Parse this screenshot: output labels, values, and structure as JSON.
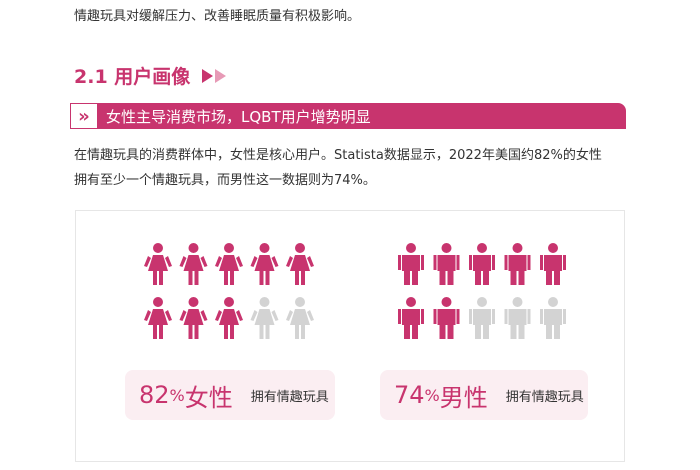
{
  "intro": "情趣玩具对缓解压力、改善睡眠质量有积极影响。",
  "section": {
    "title": "2.1 用户画像"
  },
  "banner": {
    "text": "女性主导消费市场，LQBT用户增势明显"
  },
  "paragraph": {
    "lines": [
      "在情趣玩具的消费群体中，女性是核心用户。Statista数据显示，2022年美国约82%的女性",
      "拥有至少一个情趣玩具，而男性这一数据则为74%。"
    ]
  },
  "stats": [
    {
      "value": "82",
      "unit": "%",
      "label": "女性",
      "note": "拥有情趣玩具",
      "icons_filled": 8,
      "icons_total": 10,
      "icon": "female"
    },
    {
      "value": "74",
      "unit": "%",
      "label": "男性",
      "note": "拥有情趣玩具",
      "icons_filled": 7,
      "icons_total": 10,
      "icon": "male"
    }
  ]
}
